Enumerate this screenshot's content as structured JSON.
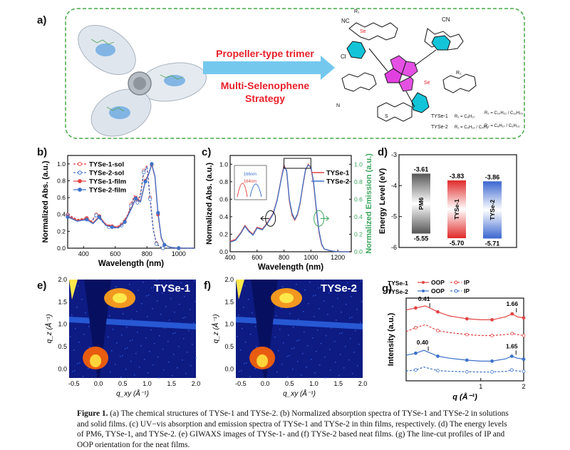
{
  "panel_labels": {
    "a": "a)",
    "b": "b)",
    "c": "c)",
    "d": "d)",
    "e": "e)",
    "f": "f)",
    "g": "g)"
  },
  "panel_a": {
    "title_line": "Propeller-type trimer",
    "strategy_lines": [
      "Multi-Selenophene",
      "Strategy"
    ],
    "legend_rows": [
      "TYSe-1",
      "TYSe-2"
    ],
    "r1_1": "R₁ = C₈H₁₇",
    "r2_1": "R₂ = C₁₀H₂₁ / C₁₂H₂₅",
    "r1_2": "R₁ = C₆H₁₃ / C₄H₉",
    "r2_2": "R₂ = C₈H₁₇ / C₆H₁₃",
    "atom_labels": [
      "NC",
      "CN",
      "Cl",
      "Se",
      "S",
      "R₁",
      "R₂",
      "N"
    ],
    "colors": {
      "accent_red": "#e8202a",
      "arrow_blue": "#74c8ee",
      "border_green": "#46a846",
      "cyan": "#13c4d8",
      "magenta": "#e23fe0"
    }
  },
  "chart_data": [
    {
      "panel": "b",
      "type": "line",
      "xlabel": "Wavelength (nm)",
      "ylabel": "Normalized Abs. (a.u.)",
      "xlim": [
        300,
        1100
      ],
      "ylim": [
        0,
        1.1
      ],
      "xticks": [
        400,
        600,
        800,
        1000
      ],
      "yticks": [
        0.0,
        0.2,
        0.4,
        0.6,
        0.8,
        1.0
      ],
      "legend": "top-left",
      "series": [
        {
          "name": "TYSe-1-sol",
          "color": "#e14545",
          "dash": true,
          "x": [
            300,
            360,
            420,
            450,
            480,
            520,
            560,
            600,
            640,
            680,
            700,
            720,
            740,
            760,
            780,
            800,
            820,
            840,
            860,
            880,
            900,
            950,
            1000,
            1100
          ],
          "y": [
            0.4,
            0.34,
            0.36,
            0.32,
            0.4,
            0.32,
            0.26,
            0.25,
            0.28,
            0.4,
            0.52,
            0.62,
            0.55,
            0.65,
            0.92,
            0.98,
            0.6,
            0.22,
            0.06,
            0.02,
            0.0,
            0.0,
            0.0,
            0.0
          ]
        },
        {
          "name": "TYSe-2-sol",
          "color": "#3e72c9",
          "dash": true,
          "x": [
            300,
            360,
            420,
            450,
            480,
            520,
            560,
            600,
            640,
            680,
            700,
            720,
            740,
            760,
            780,
            800,
            820,
            840,
            860,
            880,
            900,
            950,
            1000,
            1100
          ],
          "y": [
            0.39,
            0.33,
            0.35,
            0.31,
            0.39,
            0.31,
            0.25,
            0.24,
            0.27,
            0.39,
            0.5,
            0.6,
            0.54,
            0.63,
            0.9,
            0.96,
            0.58,
            0.21,
            0.05,
            0.02,
            0.0,
            0.0,
            0.0,
            0.0
          ]
        },
        {
          "name": "TYSe-1-film",
          "color": "#e14545",
          "dash": false,
          "x": [
            300,
            360,
            420,
            460,
            500,
            540,
            580,
            620,
            660,
            700,
            730,
            760,
            790,
            810,
            830,
            850,
            870,
            890,
            910,
            950,
            1000,
            1100
          ],
          "y": [
            0.38,
            0.33,
            0.35,
            0.3,
            0.38,
            0.28,
            0.26,
            0.25,
            0.32,
            0.47,
            0.6,
            0.56,
            0.8,
            0.88,
            0.99,
            0.85,
            0.4,
            0.12,
            0.04,
            0.01,
            0.0,
            0.0
          ]
        },
        {
          "name": "TYSe-2-film",
          "color": "#3e72c9",
          "dash": false,
          "x": [
            300,
            360,
            420,
            460,
            500,
            540,
            580,
            620,
            660,
            700,
            730,
            760,
            790,
            810,
            830,
            850,
            870,
            890,
            910,
            950,
            1000,
            1100
          ],
          "y": [
            0.37,
            0.32,
            0.34,
            0.29,
            0.37,
            0.27,
            0.25,
            0.24,
            0.31,
            0.46,
            0.59,
            0.55,
            0.79,
            0.87,
            1.0,
            0.86,
            0.42,
            0.13,
            0.04,
            0.01,
            0.0,
            0.0
          ]
        }
      ]
    },
    {
      "panel": "c",
      "type": "line",
      "xlabel": "Wavelength (nm)",
      "ylabel": "Normalized Abs. (a.u.)",
      "y2label": "Normalized Emission (a.u.)",
      "xlim": [
        400,
        1300
      ],
      "ylim": [
        0,
        1.1
      ],
      "xticks": [
        400,
        600,
        800,
        1000,
        1200
      ],
      "yticks": [
        0.0,
        0.2,
        0.4,
        0.6,
        0.8,
        1.0
      ],
      "y2ticks": [
        0.0,
        0.2,
        0.4,
        0.6,
        0.8,
        1.0
      ],
      "legend": "top-right",
      "inset_labels": [
        "166nm",
        "164nm"
      ],
      "series": [
        {
          "name": "TYSe-1",
          "color": "#e14545",
          "x": [
            400,
            440,
            480,
            510,
            540,
            570,
            600,
            640,
            680,
            720,
            750,
            780,
            800,
            820,
            840,
            860,
            880,
            900,
            920,
            940,
            960,
            980,
            1000,
            1020,
            1040,
            1060,
            1080,
            1100,
            1150,
            1200,
            1300
          ],
          "y": [
            0.12,
            0.14,
            0.22,
            0.3,
            0.24,
            0.2,
            0.28,
            0.26,
            0.34,
            0.44,
            0.6,
            0.84,
            0.99,
            0.92,
            0.58,
            0.42,
            0.36,
            0.42,
            0.55,
            0.75,
            0.93,
            1.0,
            0.96,
            0.78,
            0.48,
            0.22,
            0.08,
            0.03,
            0.01,
            0.0,
            0.0
          ]
        },
        {
          "name": "TYSe-2",
          "color": "#3e72c9",
          "x": [
            400,
            440,
            480,
            510,
            540,
            570,
            600,
            640,
            680,
            720,
            750,
            780,
            800,
            820,
            840,
            860,
            880,
            900,
            920,
            940,
            960,
            980,
            1000,
            1020,
            1040,
            1060,
            1080,
            1100,
            1150,
            1200,
            1300
          ],
          "y": [
            0.11,
            0.13,
            0.21,
            0.29,
            0.23,
            0.19,
            0.27,
            0.25,
            0.33,
            0.43,
            0.59,
            0.83,
            0.97,
            0.93,
            0.6,
            0.44,
            0.37,
            0.43,
            0.56,
            0.76,
            0.94,
            0.99,
            0.97,
            0.8,
            0.5,
            0.24,
            0.09,
            0.03,
            0.01,
            0.0,
            0.0
          ]
        }
      ]
    },
    {
      "panel": "d",
      "type": "bar",
      "ylabel": "Energy Level (eV)",
      "categories": [
        "PM6",
        "TYSe-1",
        "TYSe-2"
      ],
      "lumo": [
        -3.61,
        -3.83,
        -3.86
      ],
      "homo": [
        -5.55,
        -5.7,
        -5.71
      ],
      "lumo_labels": [
        "-3.61",
        "-3.83",
        "-3.86"
      ],
      "homo_labels": [
        "-5.55",
        "-5.70",
        "-5.71"
      ],
      "ylim": [
        -6,
        -3
      ],
      "yticks": [
        -3,
        -4,
        -5,
        -6
      ],
      "colors": [
        "#555555",
        "#e02a2a",
        "#3a66d0"
      ]
    },
    {
      "panel": "g",
      "type": "line",
      "xlabel": "q (Å⁻¹)",
      "ylabel": "Intensity (a.u.)",
      "xscale": "log",
      "xlim": [
        0.3,
        2
      ],
      "xticks": [
        1,
        2
      ],
      "legend": "top",
      "annotations": [
        "0.41",
        "1.66",
        "0.40",
        "1.65"
      ],
      "series": [
        {
          "name": "TYSe-1 OOP",
          "color": "#e14545",
          "dash": false,
          "x": [
            0.3,
            0.35,
            0.41,
            0.5,
            0.6,
            0.8,
            1.0,
            1.2,
            1.5,
            1.66,
            1.8,
            2.0
          ],
          "y": [
            3.9,
            4.0,
            4.1,
            3.8,
            3.6,
            3.45,
            3.4,
            3.4,
            3.55,
            3.7,
            3.55,
            3.5
          ]
        },
        {
          "name": "TYSe-1 IP",
          "color": "#e14545",
          "dash": true,
          "x": [
            0.3,
            0.35,
            0.41,
            0.5,
            0.6,
            0.8,
            1.0,
            1.2,
            1.5,
            1.66,
            1.8,
            2.0
          ],
          "y": [
            2.8,
            3.0,
            3.15,
            2.85,
            2.75,
            2.65,
            2.6,
            2.6,
            2.65,
            2.7,
            2.65,
            2.6
          ]
        },
        {
          "name": "TYSe-2 OOP",
          "color": "#3e72c9",
          "dash": false,
          "x": [
            0.3,
            0.35,
            0.4,
            0.5,
            0.6,
            0.8,
            1.0,
            1.2,
            1.5,
            1.65,
            1.8,
            2.0
          ],
          "y": [
            1.6,
            1.7,
            1.85,
            1.55,
            1.45,
            1.35,
            1.3,
            1.3,
            1.42,
            1.55,
            1.45,
            1.4
          ]
        },
        {
          "name": "TYSe-2 IP",
          "color": "#3e72c9",
          "dash": true,
          "x": [
            0.3,
            0.35,
            0.4,
            0.5,
            0.6,
            0.8,
            1.0,
            1.2,
            1.5,
            1.65,
            1.8,
            2.0
          ],
          "y": [
            0.8,
            0.85,
            1.0,
            0.82,
            0.78,
            0.76,
            0.75,
            0.75,
            0.78,
            0.85,
            0.8,
            0.78
          ]
        }
      ],
      "legend_entries": {
        "row1": "TYSe-1",
        "row2": "TYSe-2",
        "oop": "OOP",
        "ip": "IP"
      }
    }
  ],
  "giwaxs": [
    {
      "panel": "e",
      "label": "TYSe-1",
      "xlabel": "q_xy (Å⁻¹)",
      "ylabel": "q_z (Å⁻¹)",
      "xticks": [
        "-0.5",
        "0.0",
        "0.5",
        "1.0",
        "1.5",
        "2.0"
      ],
      "yticks": [
        "0.0",
        "0.5",
        "1.0",
        "1.5",
        "2.0"
      ]
    },
    {
      "panel": "f",
      "label": "TYSe-2",
      "xlabel": "q_xy (Å⁻¹)",
      "ylabel": "q_z (Å⁻¹)",
      "xticks": [
        "-0.5",
        "0.0",
        "0.5",
        "1.0",
        "1.5",
        "2.0"
      ],
      "yticks": [
        "0.0",
        "0.5",
        "1.0",
        "1.5",
        "2.0"
      ]
    }
  ],
  "caption": {
    "lead": "Figure 1.",
    "text": " (a) The chemical structures of TYSe-1 and TYSe-2. (b) Normalized absorption spectra of TYSe-1 and TYSe-2 in solutions and solid films. (c) UV−vis absorption and emission spectra of TYSe-1 and TYSe-2 in thin films, respectively. (d) The energy levels of PM6, TYSe-1, and TYSe-2. (e) GIWAXS images of TYSe-1- and (f) TYSe-2 based neat films. (g) The line-cut profiles of IP and OOP orientation for the neat films."
  }
}
